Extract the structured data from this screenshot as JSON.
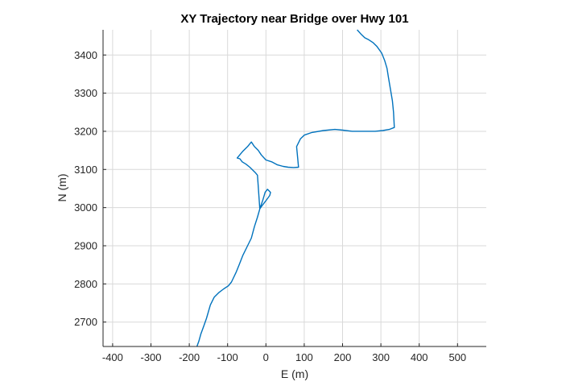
{
  "chart_data": {
    "type": "line",
    "title": "XY Trajectory near Bridge over Hwy 101",
    "xlabel": "E (m)",
    "ylabel": "N (m)",
    "xlim": [
      -425,
      575
    ],
    "ylim": [
      2636,
      3466
    ],
    "xticks": [
      -400,
      -300,
      -200,
      -100,
      0,
      100,
      200,
      300,
      400,
      500
    ],
    "yticks": [
      2700,
      2800,
      2900,
      3000,
      3100,
      3200,
      3300,
      3400
    ],
    "grid": true,
    "line_color": "#0072BD",
    "series": [
      {
        "x": [
          -180,
          -175,
          -170,
          -162,
          -155,
          -145,
          -135,
          -122,
          -110,
          -98,
          -90,
          -78,
          -70,
          -60,
          -48,
          -38,
          -30,
          -22,
          -15,
          -8,
          -2,
          4,
          8,
          12,
          10,
          0,
          -8,
          -16,
          -22,
          -28,
          -34,
          -42,
          -52,
          -62,
          -68,
          -75,
          -60,
          -48,
          -38,
          -30,
          -20,
          -12,
          0,
          15,
          30,
          45,
          58,
          72,
          85,
          82,
          80,
          90,
          100,
          120,
          150,
          180,
          200,
          225,
          245,
          265,
          285,
          305,
          322,
          335,
          333,
          330,
          325,
          320,
          316,
          310,
          302,
          290,
          280,
          268,
          258,
          248,
          238
        ],
        "y": [
          2636,
          2650,
          2668,
          2690,
          2710,
          2745,
          2765,
          2778,
          2787,
          2795,
          2805,
          2830,
          2850,
          2875,
          2900,
          2920,
          2950,
          2975,
          3000,
          3020,
          3040,
          3048,
          3044,
          3040,
          3032,
          3018,
          3008,
          2997,
          3085,
          3092,
          3098,
          3106,
          3114,
          3120,
          3128,
          3130,
          3148,
          3160,
          3172,
          3160,
          3150,
          3138,
          3125,
          3120,
          3112,
          3108,
          3106,
          3105,
          3106,
          3140,
          3160,
          3180,
          3190,
          3197,
          3202,
          3205,
          3203,
          3200,
          3200,
          3200,
          3200,
          3202,
          3205,
          3210,
          3250,
          3280,
          3310,
          3340,
          3365,
          3385,
          3405,
          3422,
          3432,
          3440,
          3445,
          3455,
          3466
        ]
      }
    ]
  }
}
